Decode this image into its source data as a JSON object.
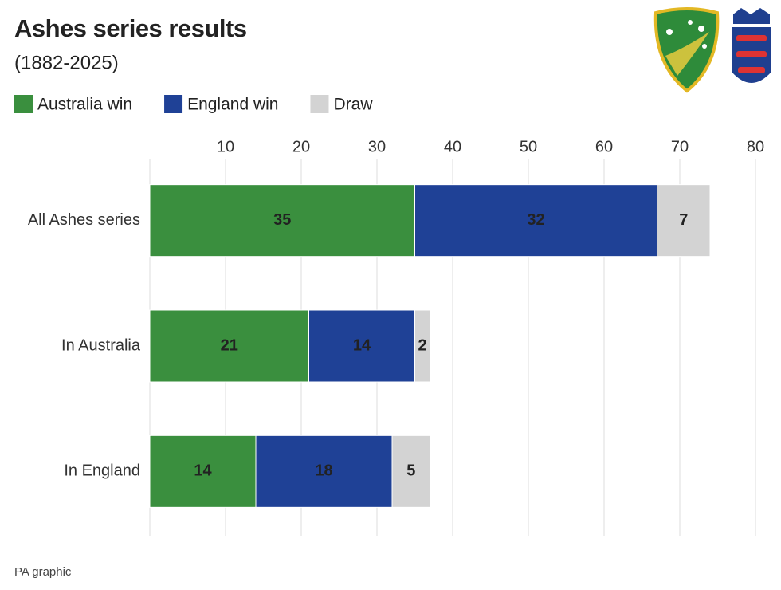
{
  "chart_data": {
    "type": "bar",
    "orientation": "horizontal",
    "stacked": true,
    "title": "Ashes series results",
    "subtitle": "(1882-2025)",
    "categories": [
      "All Ashes series",
      "In Australia",
      "In England"
    ],
    "series": [
      {
        "name": "Australia win",
        "color": "#3a8f3e",
        "label_color": "#ffffff",
        "values": [
          35,
          21,
          14
        ]
      },
      {
        "name": "England win",
        "color": "#1f4196",
        "label_color": "#ffffff",
        "values": [
          32,
          14,
          18
        ]
      },
      {
        "name": "Draw",
        "color": "#d3d3d3",
        "label_color": "#111111",
        "values": [
          7,
          2,
          5
        ]
      }
    ],
    "xlim": [
      0,
      80
    ],
    "xticks": [
      10,
      20,
      30,
      40,
      50,
      60,
      70,
      80
    ],
    "grid": true,
    "source": "PA graphic"
  }
}
